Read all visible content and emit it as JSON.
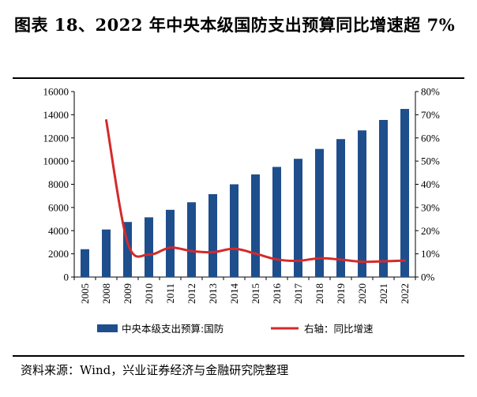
{
  "title": "图表 18、2022 年中央本级国防支出预算同比增速超 7%",
  "source": "资料来源：Wind，兴业证券经济与金融研究院整理",
  "colors": {
    "bar": "#1f4e8c",
    "line": "#d42a2a"
  },
  "chart_data": {
    "type": "bar",
    "categories": [
      "2005",
      "2008",
      "2009",
      "2010",
      "2011",
      "2012",
      "2013",
      "2014",
      "2015",
      "2016",
      "2017",
      "2018",
      "2019",
      "2020",
      "2021",
      "2022"
    ],
    "series": [
      {
        "name": "中央本级支出预算:国防",
        "type": "bar",
        "axis": "left",
        "values": [
          2400,
          4100,
          4750,
          5150,
          5800,
          6450,
          7150,
          8000,
          8850,
          9500,
          10200,
          11050,
          11900,
          12650,
          13550,
          14500
        ]
      },
      {
        "name": "右轴：同比增速",
        "type": "line",
        "axis": "right",
        "values": [
          null,
          67.6,
          14.9,
          9.7,
          12.7,
          11.2,
          10.7,
          12.2,
          10.1,
          7.6,
          7.0,
          8.1,
          7.5,
          6.6,
          6.8,
          7.1
        ]
      }
    ],
    "ylim_left": [
      0,
      16000
    ],
    "yticks_left": [
      "0",
      "2000",
      "4000",
      "6000",
      "8000",
      "10000",
      "12000",
      "14000",
      "16000"
    ],
    "ylim_right": [
      0,
      80
    ],
    "yticks_right": [
      "0%",
      "10%",
      "20%",
      "30%",
      "40%",
      "50%",
      "60%",
      "70%",
      "80%"
    ],
    "legend": [
      "中央本级支出预算:国防",
      "右轴：同比增速"
    ]
  }
}
